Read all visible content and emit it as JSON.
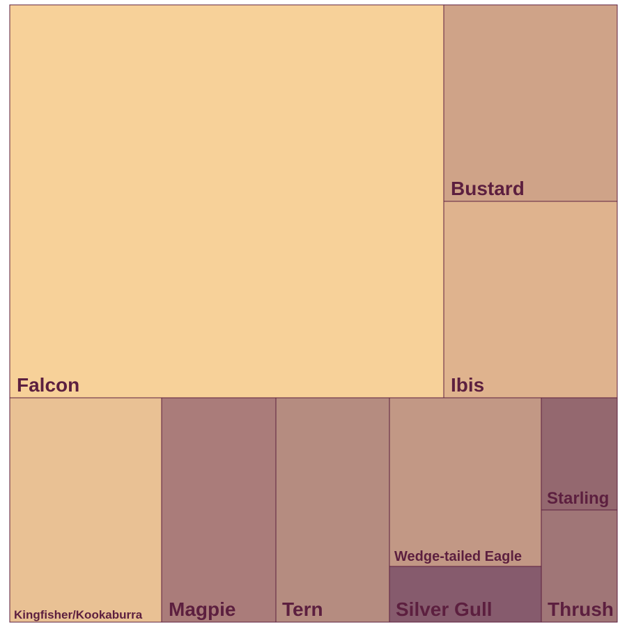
{
  "chart_data": {
    "type": "treemap",
    "border_color": "#5c1f3f",
    "label_color": "#5c1f3f",
    "tiles": [
      {
        "name": "Falcon",
        "value": 34.7,
        "color": "#f7d199"
      },
      {
        "name": "Bustard",
        "value": 9.1,
        "color": "#cfa388"
      },
      {
        "name": "Ibis",
        "value": 9.1,
        "color": "#dfb38e"
      },
      {
        "name": "Kingfisher/Kookaburra",
        "value": 8.7,
        "color": "#e9c194"
      },
      {
        "name": "Magpie",
        "value": 6.5,
        "color": "#aa7c7a"
      },
      {
        "name": "Tern",
        "value": 6.5,
        "color": "#b58c80"
      },
      {
        "name": "Wedge-tailed Eagle",
        "value": 6.0,
        "color": "#c29885"
      },
      {
        "name": "Silver Gull",
        "value": 2.3,
        "color": "#865b6d"
      },
      {
        "name": "Starling",
        "value": 2.3,
        "color": "#94686f"
      },
      {
        "name": "Thrush",
        "value": 2.3,
        "color": "#a07677"
      }
    ]
  }
}
